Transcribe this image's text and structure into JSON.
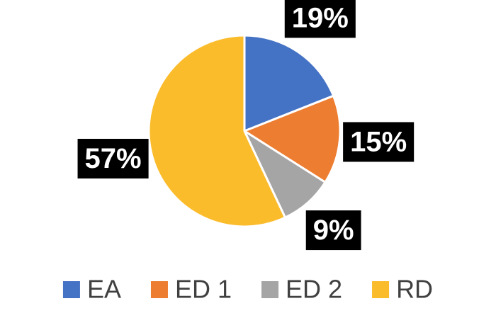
{
  "chart_data": {
    "type": "pie",
    "categories": [
      "EA",
      "ED 1",
      "ED 2",
      "RD"
    ],
    "values": [
      19,
      15,
      9,
      57
    ],
    "value_labels": [
      "19%",
      "15%",
      "9%",
      "57%"
    ],
    "colors": [
      "#4472c4",
      "#ed7d31",
      "#a5a5a5",
      "#fbbc2c"
    ],
    "legend": "bottom"
  }
}
